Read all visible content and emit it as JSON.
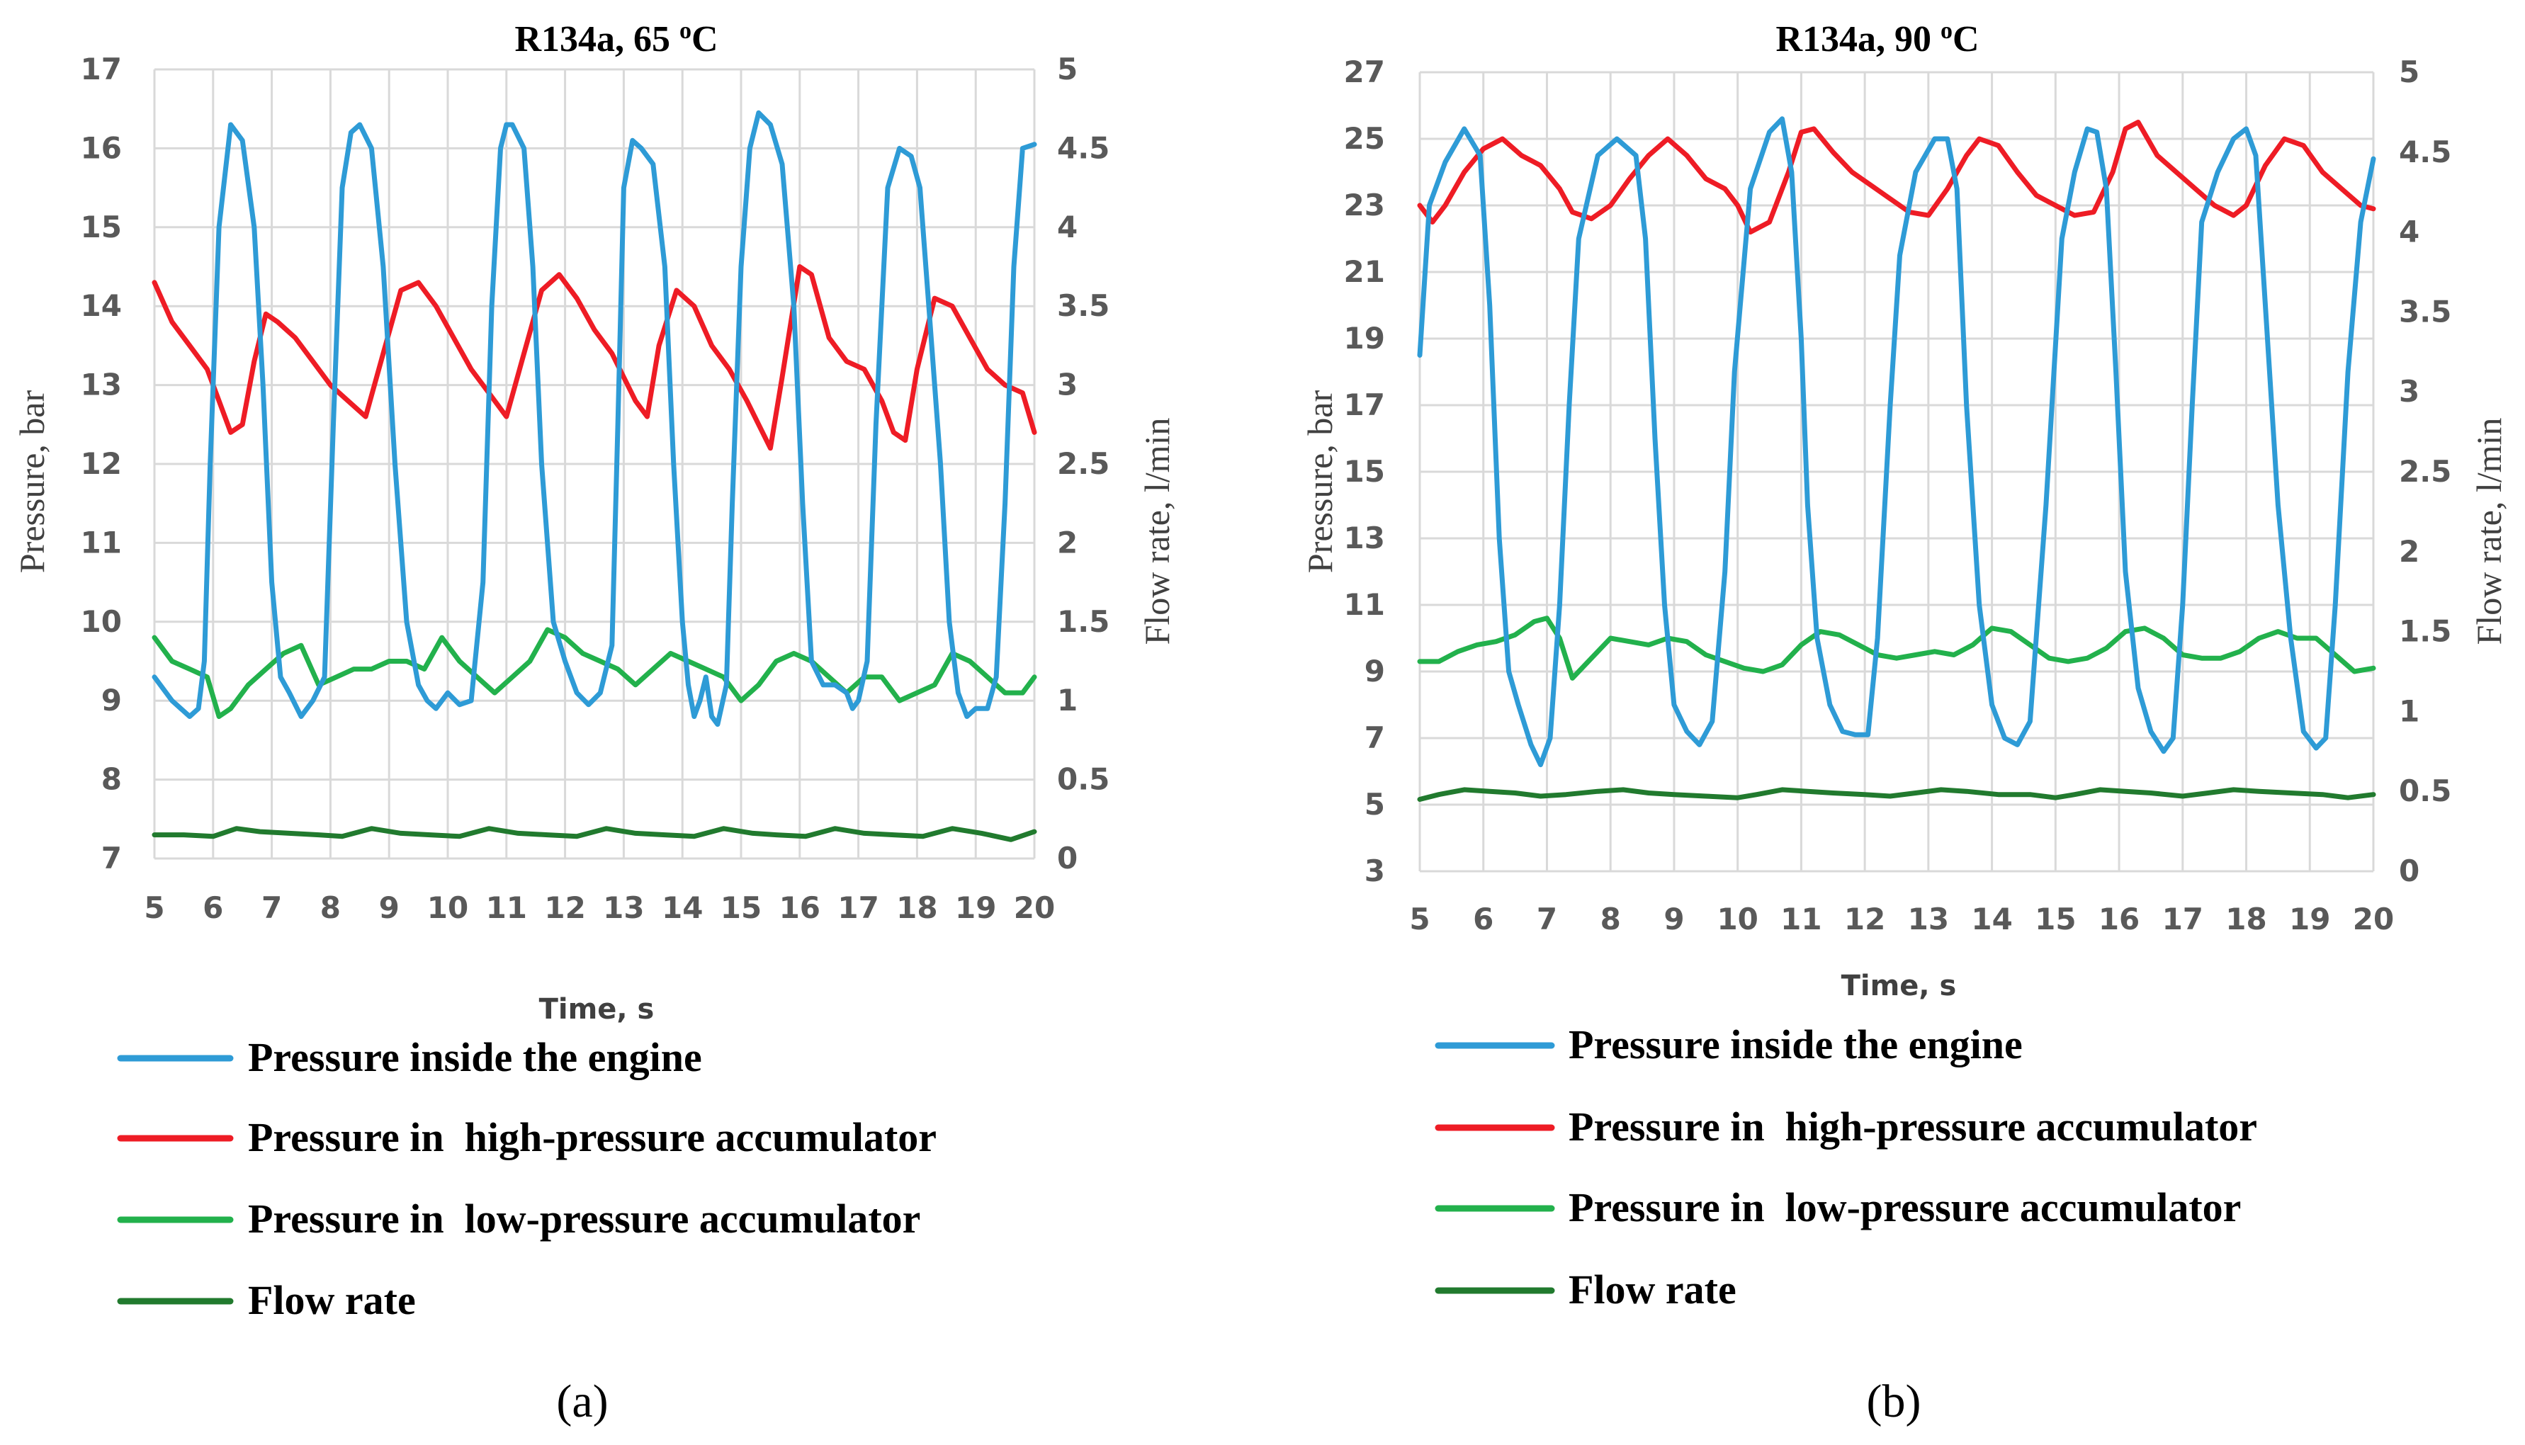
{
  "chart_data": [
    {
      "type": "line",
      "title": "R134a, 65 ",
      "title_unit": "C",
      "title_sup": "o",
      "xlabel": "Time, s",
      "ylabel": "Pressure, bar",
      "y2label": "Flow rate, l/min",
      "xlim": [
        5,
        20
      ],
      "ylim": [
        7,
        17
      ],
      "y2lim": [
        0,
        5
      ],
      "xticks": [
        5,
        6,
        7,
        8,
        9,
        10,
        11,
        12,
        13,
        14,
        15,
        16,
        17,
        18,
        19,
        20
      ],
      "yticks": [
        7,
        8,
        9,
        10,
        11,
        12,
        13,
        14,
        15,
        16,
        17
      ],
      "y2ticks": [
        0,
        0.5,
        1,
        1.5,
        2,
        2.5,
        3,
        3.5,
        4,
        4.5,
        5
      ],
      "grid": true,
      "panel_label": "(a)",
      "series": [
        {
          "name": "Pressure inside the engine",
          "color": "#2e9bd6",
          "axis": "left",
          "x": [
            5.0,
            5.3,
            5.6,
            5.75,
            5.85,
            5.95,
            6.1,
            6.3,
            6.5,
            6.7,
            6.85,
            7.0,
            7.15,
            7.3,
            7.5,
            7.7,
            7.9,
            8.05,
            8.2,
            8.35,
            8.5,
            8.7,
            8.9,
            9.1,
            9.3,
            9.5,
            9.65,
            9.8,
            10.0,
            10.2,
            10.4,
            10.6,
            10.75,
            10.9,
            11.0,
            11.1,
            11.3,
            11.45,
            11.6,
            11.8,
            12.0,
            12.2,
            12.4,
            12.6,
            12.8,
            12.9,
            13.0,
            13.15,
            13.3,
            13.5,
            13.7,
            13.85,
            14.0,
            14.1,
            14.2,
            14.3,
            14.4,
            14.5,
            14.6,
            14.75,
            14.85,
            15.0,
            15.15,
            15.3,
            15.5,
            15.7,
            15.9,
            16.05,
            16.2,
            16.4,
            16.6,
            16.8,
            16.9,
            17.0,
            17.15,
            17.3,
            17.5,
            17.7,
            17.9,
            18.05,
            18.2,
            18.4,
            18.55,
            18.7,
            18.85,
            19.0,
            19.2,
            19.35,
            19.5,
            19.65,
            19.8,
            20.0
          ],
          "y": [
            9.3,
            9.0,
            8.8,
            8.9,
            9.5,
            12.0,
            15.0,
            16.3,
            16.1,
            15.0,
            13.0,
            10.5,
            9.3,
            9.1,
            8.8,
            9.0,
            9.3,
            12.5,
            15.5,
            16.2,
            16.3,
            16.0,
            14.5,
            12.0,
            10.0,
            9.2,
            9.0,
            8.9,
            9.1,
            8.95,
            9.0,
            10.5,
            14.0,
            16.0,
            16.3,
            16.3,
            16.0,
            14.5,
            12.0,
            10.0,
            9.5,
            9.1,
            8.95,
            9.1,
            9.7,
            12.5,
            15.5,
            16.1,
            16.0,
            15.8,
            14.5,
            12.0,
            10.0,
            9.2,
            8.8,
            9.0,
            9.3,
            8.8,
            8.7,
            9.2,
            11.5,
            14.5,
            16.0,
            16.45,
            16.3,
            15.8,
            14.0,
            11.5,
            9.5,
            9.2,
            9.2,
            9.1,
            8.9,
            9.0,
            9.5,
            12.5,
            15.5,
            16.0,
            15.9,
            15.5,
            14.0,
            12.0,
            10.0,
            9.1,
            8.8,
            8.9,
            8.9,
            9.3,
            11.5,
            14.5,
            16.0,
            16.05
          ]
        },
        {
          "name": "Pressure in  high-pressure accumulator",
          "color": "#ee1c25",
          "axis": "left",
          "x": [
            5.0,
            5.3,
            5.6,
            5.9,
            6.1,
            6.3,
            6.5,
            6.7,
            6.9,
            7.1,
            7.4,
            7.7,
            8.0,
            8.3,
            8.6,
            8.9,
            9.2,
            9.5,
            9.8,
            10.1,
            10.4,
            10.7,
            11.0,
            11.3,
            11.6,
            11.9,
            12.2,
            12.5,
            12.8,
            13.0,
            13.2,
            13.4,
            13.6,
            13.9,
            14.2,
            14.5,
            14.8,
            15.1,
            15.3,
            15.5,
            15.7,
            16.0,
            16.2,
            16.5,
            16.8,
            17.1,
            17.4,
            17.6,
            17.8,
            18.0,
            18.3,
            18.6,
            18.9,
            19.2,
            19.5,
            19.8,
            20.0
          ],
          "y": [
            14.3,
            13.8,
            13.5,
            13.2,
            12.8,
            12.4,
            12.5,
            13.3,
            13.9,
            13.8,
            13.6,
            13.3,
            13.0,
            12.8,
            12.6,
            13.4,
            14.2,
            14.3,
            14.0,
            13.6,
            13.2,
            12.9,
            12.6,
            13.4,
            14.2,
            14.4,
            14.1,
            13.7,
            13.4,
            13.1,
            12.8,
            12.6,
            13.5,
            14.2,
            14.0,
            13.5,
            13.2,
            12.8,
            12.5,
            12.2,
            13.1,
            14.5,
            14.4,
            13.6,
            13.3,
            13.2,
            12.8,
            12.4,
            12.3,
            13.2,
            14.1,
            14.0,
            13.6,
            13.2,
            13.0,
            12.9,
            12.4
          ]
        },
        {
          "name": "Pressure in  low-pressure accumulator",
          "color": "#22b14c",
          "axis": "left",
          "x": [
            5.0,
            5.3,
            5.6,
            5.9,
            6.1,
            6.3,
            6.6,
            6.9,
            7.2,
            7.5,
            7.8,
            8.1,
            8.4,
            8.7,
            9.0,
            9.3,
            9.6,
            9.9,
            10.2,
            10.5,
            10.8,
            11.1,
            11.4,
            11.7,
            12.0,
            12.3,
            12.6,
            12.9,
            13.2,
            13.5,
            13.8,
            14.1,
            14.4,
            14.7,
            15.0,
            15.3,
            15.6,
            15.9,
            16.2,
            16.5,
            16.8,
            17.1,
            17.4,
            17.7,
            18.0,
            18.3,
            18.6,
            18.9,
            19.2,
            19.5,
            19.8,
            20.0
          ],
          "y": [
            9.8,
            9.5,
            9.4,
            9.3,
            8.8,
            8.9,
            9.2,
            9.4,
            9.6,
            9.7,
            9.2,
            9.3,
            9.4,
            9.4,
            9.5,
            9.5,
            9.4,
            9.8,
            9.5,
            9.3,
            9.1,
            9.3,
            9.5,
            9.9,
            9.8,
            9.6,
            9.5,
            9.4,
            9.2,
            9.4,
            9.6,
            9.5,
            9.4,
            9.3,
            9.0,
            9.2,
            9.5,
            9.6,
            9.5,
            9.3,
            9.1,
            9.3,
            9.3,
            9.0,
            9.1,
            9.2,
            9.6,
            9.5,
            9.3,
            9.1,
            9.1,
            9.3
          ]
        },
        {
          "name": "Flow rate",
          "color": "#217a2e",
          "axis": "right",
          "x": [
            5.0,
            5.5,
            6.0,
            6.4,
            6.8,
            7.3,
            7.8,
            8.2,
            8.7,
            9.2,
            9.7,
            10.2,
            10.7,
            11.2,
            11.7,
            12.2,
            12.7,
            13.2,
            13.7,
            14.2,
            14.7,
            15.2,
            15.6,
            16.1,
            16.6,
            17.1,
            17.6,
            18.1,
            18.6,
            19.1,
            19.6,
            20.0
          ],
          "y": [
            0.15,
            0.15,
            0.14,
            0.19,
            0.17,
            0.16,
            0.15,
            0.14,
            0.19,
            0.16,
            0.15,
            0.14,
            0.19,
            0.16,
            0.15,
            0.14,
            0.19,
            0.16,
            0.15,
            0.14,
            0.19,
            0.16,
            0.15,
            0.14,
            0.19,
            0.16,
            0.15,
            0.14,
            0.19,
            0.16,
            0.12,
            0.17
          ]
        }
      ]
    },
    {
      "type": "line",
      "title": "R134a, 90 ",
      "title_unit": "C",
      "title_sup": "o",
      "xlabel": "Time, s",
      "ylabel": "Pressure, bar",
      "y2label": "Flow rate, l/min",
      "xlim": [
        5,
        20
      ],
      "ylim": [
        3,
        27
      ],
      "y2lim": [
        0,
        5
      ],
      "xticks": [
        5,
        6,
        7,
        8,
        9,
        10,
        11,
        12,
        13,
        14,
        15,
        16,
        17,
        18,
        19,
        20
      ],
      "yticks": [
        3,
        5,
        7,
        9,
        11,
        13,
        15,
        17,
        19,
        21,
        23,
        25,
        27
      ],
      "y2ticks": [
        0,
        0.5,
        1,
        1.5,
        2,
        2.5,
        3,
        3.5,
        4,
        4.5,
        5
      ],
      "grid": true,
      "panel_label": "(b)",
      "series": [
        {
          "name": "Pressure inside the engine",
          "color": "#2e9bd6",
          "axis": "left",
          "x": [
            5.0,
            5.15,
            5.4,
            5.7,
            5.95,
            6.1,
            6.25,
            6.4,
            6.55,
            6.75,
            6.9,
            7.05,
            7.2,
            7.35,
            7.5,
            7.8,
            8.1,
            8.4,
            8.55,
            8.7,
            8.85,
            9.0,
            9.2,
            9.4,
            9.6,
            9.8,
            9.95,
            10.2,
            10.5,
            10.7,
            10.85,
            11.0,
            11.1,
            11.25,
            11.45,
            11.65,
            11.85,
            12.05,
            12.2,
            12.4,
            12.55,
            12.8,
            13.1,
            13.3,
            13.45,
            13.6,
            13.8,
            14.0,
            14.2,
            14.4,
            14.6,
            14.85,
            15.1,
            15.3,
            15.5,
            15.65,
            15.8,
            15.95,
            16.1,
            16.3,
            16.5,
            16.7,
            16.85,
            17.0,
            17.15,
            17.3,
            17.55,
            17.8,
            18.0,
            18.15,
            18.3,
            18.5,
            18.7,
            18.9,
            19.1,
            19.25,
            19.4,
            19.6,
            19.8,
            20.0
          ],
          "y": [
            18.5,
            23.0,
            24.3,
            25.3,
            24.5,
            20.0,
            13.0,
            9.0,
            8.0,
            6.8,
            6.2,
            7.0,
            11.0,
            17.0,
            22.0,
            24.5,
            25.0,
            24.5,
            22.0,
            16.0,
            11.0,
            8.0,
            7.2,
            6.8,
            7.5,
            12.0,
            18.0,
            23.5,
            25.2,
            25.6,
            24.0,
            19.0,
            14.0,
            10.0,
            8.0,
            7.2,
            7.1,
            7.1,
            10.0,
            17.0,
            21.5,
            24.0,
            25.0,
            25.0,
            23.5,
            17.0,
            11.0,
            8.0,
            7.0,
            6.8,
            7.5,
            14.0,
            22.0,
            24.0,
            25.3,
            25.2,
            23.5,
            18.0,
            12.0,
            8.5,
            7.2,
            6.6,
            7.0,
            11.0,
            17.0,
            22.5,
            24.0,
            25.0,
            25.3,
            24.5,
            20.0,
            14.0,
            10.0,
            7.2,
            6.7,
            7.0,
            11.0,
            18.0,
            22.5,
            24.4
          ]
        },
        {
          "name": "Pressure in  high-pressure accumulator",
          "color": "#ee1c25",
          "axis": "left",
          "x": [
            5.0,
            5.2,
            5.4,
            5.7,
            6.0,
            6.3,
            6.6,
            6.9,
            7.2,
            7.4,
            7.7,
            8.0,
            8.3,
            8.6,
            8.9,
            9.2,
            9.5,
            9.8,
            10.0,
            10.2,
            10.5,
            10.8,
            11.0,
            11.2,
            11.5,
            11.8,
            12.1,
            12.4,
            12.7,
            13.0,
            13.3,
            13.6,
            13.8,
            14.1,
            14.4,
            14.7,
            15.0,
            15.3,
            15.6,
            15.9,
            16.1,
            16.3,
            16.6,
            16.9,
            17.2,
            17.5,
            17.8,
            18.0,
            18.3,
            18.6,
            18.9,
            19.2,
            19.5,
            19.8,
            20.0
          ],
          "y": [
            23.0,
            22.5,
            23.0,
            24.0,
            24.7,
            25.0,
            24.5,
            24.2,
            23.5,
            22.8,
            22.6,
            23.0,
            23.8,
            24.5,
            25.0,
            24.5,
            23.8,
            23.5,
            23.0,
            22.2,
            22.5,
            24.0,
            25.2,
            25.3,
            24.6,
            24.0,
            23.6,
            23.2,
            22.8,
            22.7,
            23.5,
            24.5,
            25.0,
            24.8,
            24.0,
            23.3,
            23.0,
            22.7,
            22.8,
            24.0,
            25.3,
            25.5,
            24.5,
            24.0,
            23.5,
            23.0,
            22.7,
            23.0,
            24.2,
            25.0,
            24.8,
            24.0,
            23.5,
            23.0,
            22.9
          ]
        },
        {
          "name": "Pressure in  low-pressure accumulator",
          "color": "#22b14c",
          "axis": "left",
          "x": [
            5.0,
            5.3,
            5.6,
            5.9,
            6.2,
            6.5,
            6.8,
            7.0,
            7.2,
            7.4,
            7.7,
            8.0,
            8.3,
            8.6,
            8.9,
            9.2,
            9.5,
            9.8,
            10.1,
            10.4,
            10.7,
            11.0,
            11.3,
            11.6,
            11.9,
            12.2,
            12.5,
            12.8,
            13.1,
            13.4,
            13.7,
            14.0,
            14.3,
            14.6,
            14.9,
            15.2,
            15.5,
            15.8,
            16.1,
            16.4,
            16.7,
            17.0,
            17.3,
            17.6,
            17.9,
            18.2,
            18.5,
            18.8,
            19.1,
            19.4,
            19.7,
            20.0
          ],
          "y": [
            9.3,
            9.3,
            9.6,
            9.8,
            9.9,
            10.1,
            10.5,
            10.6,
            10.0,
            8.8,
            9.4,
            10.0,
            9.9,
            9.8,
            10.0,
            9.9,
            9.5,
            9.3,
            9.1,
            9.0,
            9.2,
            9.8,
            10.2,
            10.1,
            9.8,
            9.5,
            9.4,
            9.5,
            9.6,
            9.5,
            9.8,
            10.3,
            10.2,
            9.8,
            9.4,
            9.3,
            9.4,
            9.7,
            10.2,
            10.3,
            10.0,
            9.5,
            9.4,
            9.4,
            9.6,
            10.0,
            10.2,
            10.0,
            10.0,
            9.5,
            9.0,
            9.1
          ]
        },
        {
          "name": "Flow rate",
          "color": "#217a2e",
          "axis": "right",
          "x": [
            5.0,
            5.3,
            5.7,
            6.1,
            6.5,
            6.9,
            7.3,
            7.8,
            8.2,
            8.6,
            9.0,
            9.5,
            10.0,
            10.3,
            10.7,
            11.1,
            11.5,
            12.0,
            12.4,
            12.8,
            13.2,
            13.6,
            14.1,
            14.6,
            15.0,
            15.3,
            15.7,
            16.1,
            16.5,
            17.0,
            17.4,
            17.8,
            18.2,
            18.7,
            19.2,
            19.6,
            20.0
          ],
          "y": [
            0.45,
            0.48,
            0.51,
            0.5,
            0.49,
            0.47,
            0.48,
            0.5,
            0.51,
            0.49,
            0.48,
            0.47,
            0.46,
            0.48,
            0.51,
            0.5,
            0.49,
            0.48,
            0.47,
            0.49,
            0.51,
            0.5,
            0.48,
            0.48,
            0.46,
            0.48,
            0.51,
            0.5,
            0.49,
            0.47,
            0.49,
            0.51,
            0.5,
            0.49,
            0.48,
            0.46,
            0.48
          ]
        }
      ]
    }
  ]
}
